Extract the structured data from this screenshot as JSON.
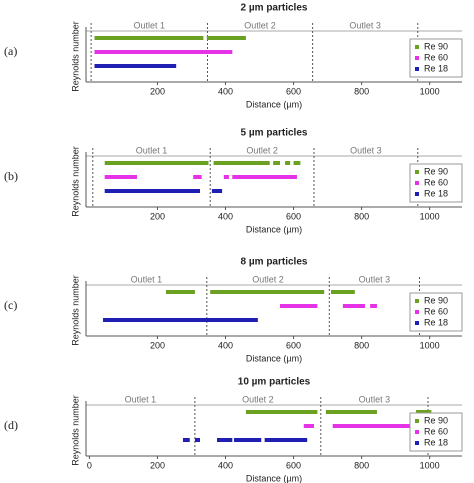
{
  "chart_data": [
    {
      "type": "segment",
      "panel_label": "(a)",
      "title": "2 µm particles",
      "xlabel": "Distance (µm)",
      "ylabel": "Reynolds number",
      "xlim": [
        -10,
        1095
      ],
      "xticks": [
        200,
        400,
        600,
        800,
        1000
      ],
      "legend": "right",
      "outlet_labels": [
        "Outlet 1",
        "Outlet 2",
        "Outlet 3"
      ],
      "outlet_boundaries": [
        5,
        347,
        656,
        965
      ],
      "series": [
        {
          "name": "Re 90",
          "color": "#6aa121",
          "values": [
            [
              15,
              335
            ],
            [
              345,
              460
            ]
          ]
        },
        {
          "name": "Re 60",
          "color": "#e632e6",
          "values": [
            [
              15,
              420
            ]
          ]
        },
        {
          "name": "Re 18",
          "color": "#1f1fb4",
          "values": [
            [
              15,
              255
            ]
          ]
        }
      ]
    },
    {
      "type": "segment",
      "panel_label": "(b)",
      "title": "5 µm particles",
      "xlabel": "Distance (µm)",
      "ylabel": "Reynolds number",
      "xlim": [
        -10,
        1095
      ],
      "xticks": [
        200,
        400,
        600,
        800,
        1000
      ],
      "legend": "right",
      "outlet_labels": [
        "Outlet 1",
        "Outlet 2",
        "Outlet 3"
      ],
      "outlet_boundaries": [
        10,
        355,
        660,
        965
      ],
      "series": [
        {
          "name": "Re 90",
          "color": "#6aa121",
          "values": [
            [
              45,
              350
            ],
            [
              365,
              530
            ],
            [
              540,
              560
            ],
            [
              575,
              590
            ],
            [
              600,
              620
            ]
          ]
        },
        {
          "name": "Re 60",
          "color": "#e632e6",
          "values": [
            [
              45,
              140
            ],
            [
              305,
              330
            ],
            [
              395,
              410
            ],
            [
              420,
              610
            ]
          ]
        },
        {
          "name": "Re 18",
          "color": "#1f1fb4",
          "values": [
            [
              45,
              325
            ],
            [
              360,
              390
            ]
          ]
        }
      ]
    },
    {
      "type": "segment",
      "panel_label": "(c)",
      "title": "8 µm particles",
      "xlabel": "Distance (µm)",
      "ylabel": "Reynolds number",
      "xlim": [
        -10,
        1095
      ],
      "xticks": [
        200,
        400,
        600,
        800,
        1000
      ],
      "legend": "right",
      "outlet_labels": [
        "Outlet 1",
        "Outlet 2",
        "Outlet 3"
      ],
      "outlet_boundaries": [
        345,
        705,
        970
      ],
      "series": [
        {
          "name": "Re 90",
          "color": "#6aa121",
          "values": [
            [
              225,
              310
            ],
            [
              355,
              690
            ],
            [
              710,
              780
            ]
          ]
        },
        {
          "name": "Re 60",
          "color": "#e632e6",
          "values": [
            [
              560,
              670
            ],
            [
              745,
              810
            ],
            [
              825,
              845
            ]
          ]
        },
        {
          "name": "Re 18",
          "color": "#1f1fb4",
          "values": [
            [
              40,
              495
            ]
          ]
        }
      ]
    },
    {
      "type": "segment",
      "panel_label": "(d)",
      "title": "10 µm particles",
      "xlabel": "Distance (µm)",
      "ylabel": "Reynolds number",
      "xlim": [
        -10,
        1095
      ],
      "xticks": [
        0,
        200,
        400,
        600,
        800,
        1000
      ],
      "legend": "right",
      "outlet_labels": [
        "Outlet 1",
        "Outlet 2",
        "Outlet 3"
      ],
      "outlet_boundaries": [
        310,
        680,
        995
      ],
      "series": [
        {
          "name": "Re 90",
          "color": "#6aa121",
          "values": [
            [
              460,
              670
            ],
            [
              695,
              845
            ],
            [
              960,
              1005
            ]
          ]
        },
        {
          "name": "Re 60",
          "color": "#e632e6",
          "values": [
            [
              630,
              660
            ],
            [
              715,
              945
            ],
            [
              970,
              1000
            ]
          ]
        },
        {
          "name": "Re 18",
          "color": "#1f1fb4",
          "values": [
            [
              275,
              295
            ],
            [
              310,
              325
            ],
            [
              375,
              420
            ],
            [
              425,
              505
            ],
            [
              515,
              640
            ]
          ]
        }
      ]
    }
  ]
}
